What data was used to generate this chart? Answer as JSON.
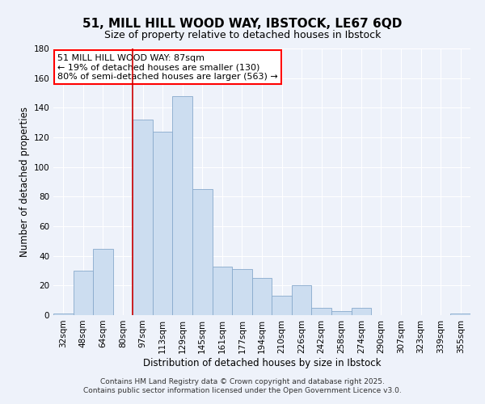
{
  "title": "51, MILL HILL WOOD WAY, IBSTOCK, LE67 6QD",
  "subtitle": "Size of property relative to detached houses in Ibstock",
  "xlabel": "Distribution of detached houses by size in Ibstock",
  "ylabel": "Number of detached properties",
  "bar_labels": [
    "32sqm",
    "48sqm",
    "64sqm",
    "80sqm",
    "97sqm",
    "113sqm",
    "129sqm",
    "145sqm",
    "161sqm",
    "177sqm",
    "194sqm",
    "210sqm",
    "226sqm",
    "242sqm",
    "258sqm",
    "274sqm",
    "290sqm",
    "307sqm",
    "323sqm",
    "339sqm",
    "355sqm"
  ],
  "bar_values": [
    1,
    30,
    45,
    0,
    132,
    124,
    148,
    85,
    33,
    31,
    25,
    13,
    20,
    5,
    3,
    5,
    0,
    0,
    0,
    0,
    1
  ],
  "bar_color": "#ccddf0",
  "bar_edge_color": "#88aacc",
  "background_color": "#eef2fa",
  "grid_color": "#ffffff",
  "vline_x": 4,
  "vline_color": "#cc0000",
  "ylim": [
    0,
    180
  ],
  "yticks": [
    0,
    20,
    40,
    60,
    80,
    100,
    120,
    140,
    160,
    180
  ],
  "annotation_box_text": "51 MILL HILL WOOD WAY: 87sqm\n← 19% of detached houses are smaller (130)\n80% of semi-detached houses are larger (563) →",
  "footer_line1": "Contains HM Land Registry data © Crown copyright and database right 2025.",
  "footer_line2": "Contains public sector information licensed under the Open Government Licence v3.0.",
  "title_fontsize": 11,
  "subtitle_fontsize": 9,
  "axis_label_fontsize": 8.5,
  "tick_fontsize": 7.5,
  "annotation_fontsize": 8,
  "footer_fontsize": 6.5
}
